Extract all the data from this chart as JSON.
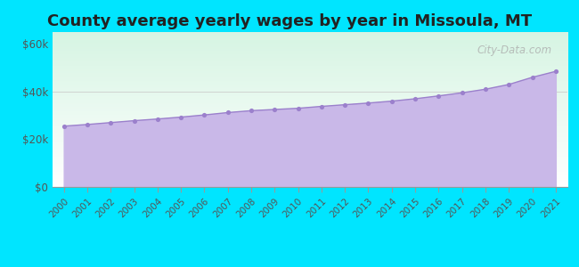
{
  "title": "County average yearly wages by year in Missoula, MT",
  "years": [
    2000,
    2001,
    2002,
    2003,
    2004,
    2005,
    2006,
    2007,
    2008,
    2009,
    2010,
    2011,
    2012,
    2013,
    2014,
    2015,
    2016,
    2017,
    2018,
    2019,
    2020,
    2021
  ],
  "wages": [
    25500,
    26200,
    27000,
    27800,
    28500,
    29300,
    30200,
    31200,
    32000,
    32500,
    33000,
    33800,
    34500,
    35200,
    36000,
    37000,
    38200,
    39500,
    41000,
    43000,
    46000,
    48500
  ],
  "fill_color": "#c9b8e8",
  "line_color": "#9b80cc",
  "dot_color": "#9b80cc",
  "bg_color_top": "#d6f5e3",
  "bg_color_bottom": "#ffffff",
  "outer_bg": "#00e5ff",
  "yticks": [
    0,
    20000,
    40000,
    60000
  ],
  "ytick_labels": [
    "$0",
    "$20k",
    "$40k",
    "$60k"
  ],
  "ylim": [
    0,
    65000
  ],
  "title_fontsize": 13,
  "watermark": "City-Data.com"
}
